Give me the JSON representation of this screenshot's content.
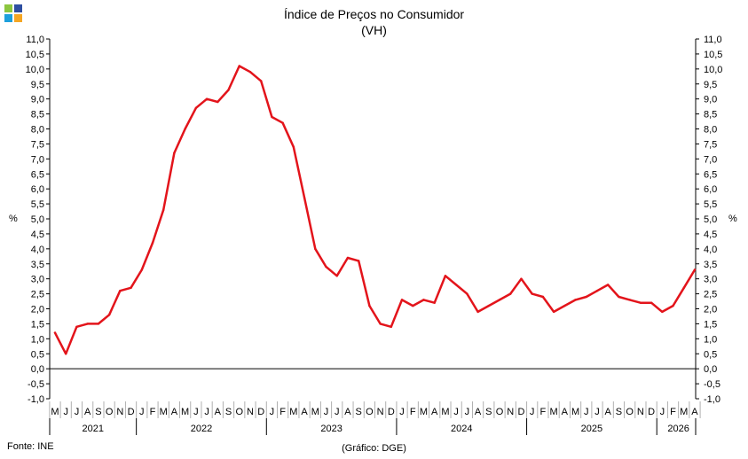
{
  "title": "Índice de Preços no Consumidor",
  "subtitle": "(VH)",
  "source": "Fonte: INE",
  "credit": "(Gráfico: DGE)",
  "colors": {
    "line": "#e3141b",
    "axis": "#000000",
    "logo": [
      "#8cc63f",
      "#2e4fa1",
      "#1da0dc",
      "#f5a623"
    ]
  },
  "chart_data": {
    "type": "line",
    "ylabel": "%",
    "ylim": [
      -1.0,
      11.0
    ],
    "yticks": [
      "-1,0",
      "-0,5",
      "0,0",
      "0,5",
      "1,0",
      "1,5",
      "2,0",
      "2,5",
      "3,0",
      "3,5",
      "4,0",
      "4,5",
      "5,0",
      "5,5",
      "6,0",
      "6,5",
      "7,0",
      "7,5",
      "8,0",
      "8,5",
      "9,0",
      "9,5",
      "10,0",
      "10,5",
      "11,0"
    ],
    "month_labels": [
      "M",
      "J",
      "J",
      "A",
      "S",
      "O",
      "N",
      "D",
      "J",
      "F",
      "M",
      "A",
      "M",
      "J",
      "J",
      "A",
      "S",
      "O",
      "N",
      "D",
      "J",
      "F",
      "M",
      "A",
      "M",
      "J",
      "J",
      "A",
      "S",
      "O",
      "N",
      "D",
      "J",
      "F",
      "M",
      "A",
      "M",
      "J",
      "J",
      "A",
      "S",
      "O",
      "N",
      "D",
      "J",
      "F",
      "M",
      "A",
      "M",
      "J",
      "J",
      "A",
      "S",
      "O",
      "N",
      "D",
      "J",
      "F",
      "M",
      "A"
    ],
    "years": [
      {
        "label": "2021",
        "start": 0,
        "count": 8
      },
      {
        "label": "2022",
        "start": 8,
        "count": 12
      },
      {
        "label": "2023",
        "start": 20,
        "count": 12
      },
      {
        "label": "2024",
        "start": 32,
        "count": 12
      },
      {
        "label": "2025",
        "start": 44,
        "count": 12
      },
      {
        "label": "2026",
        "start": 56,
        "count": 4
      }
    ],
    "series": [
      {
        "values": [
          1.2,
          0.5,
          1.4,
          1.5,
          1.5,
          1.8,
          2.6,
          2.7,
          3.3,
          4.2,
          5.3,
          7.2,
          8.0,
          8.7,
          9.0,
          8.9,
          9.3,
          10.1,
          9.9,
          9.6,
          8.4,
          8.2,
          7.4,
          5.7,
          4.0,
          3.4,
          3.1,
          3.7,
          3.6,
          2.1,
          1.5,
          1.4,
          2.3,
          2.1,
          2.3,
          2.2,
          3.1,
          2.8,
          2.5,
          1.9,
          2.1,
          2.3,
          2.5,
          3.0,
          2.5,
          2.4,
          1.9,
          2.1,
          2.3,
          2.4,
          2.6,
          2.8,
          2.4,
          2.3,
          2.2,
          2.2,
          1.9,
          2.1,
          2.7,
          3.3
        ]
      }
    ],
    "grid": false,
    "legend": "none"
  }
}
